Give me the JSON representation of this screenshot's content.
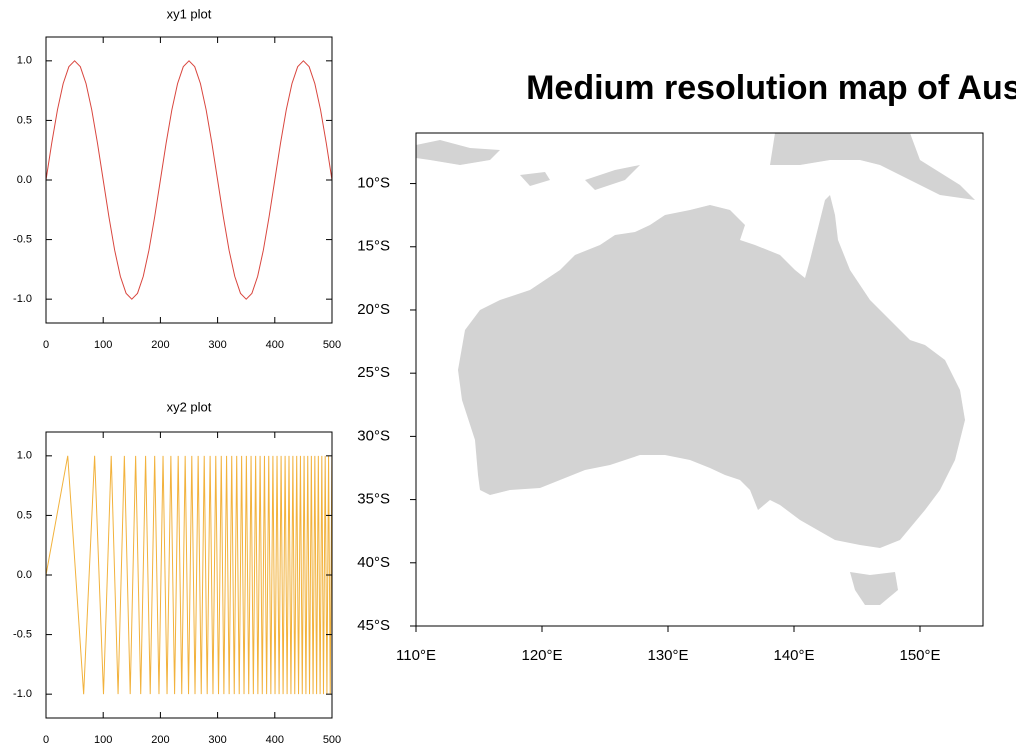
{
  "chart_data": [
    {
      "type": "line",
      "title": "xy1 plot",
      "color": "#d9463e",
      "x": [
        0,
        10,
        20,
        30,
        40,
        50,
        60,
        70,
        80,
        90,
        100,
        110,
        120,
        130,
        140,
        150,
        160,
        170,
        180,
        190,
        200,
        210,
        220,
        230,
        240,
        250,
        260,
        270,
        280,
        290,
        300,
        310,
        320,
        330,
        340,
        350,
        360,
        370,
        380,
        390,
        400,
        410,
        420,
        430,
        440,
        450,
        460,
        470,
        480,
        490,
        500
      ],
      "values": [
        0,
        0.309,
        0.588,
        0.809,
        0.951,
        1,
        0.951,
        0.809,
        0.588,
        0.309,
        0,
        -0.309,
        -0.588,
        -0.809,
        -0.951,
        -1,
        -0.951,
        -0.809,
        -0.588,
        -0.309,
        0,
        0.309,
        0.588,
        0.809,
        0.951,
        1,
        0.951,
        0.809,
        0.588,
        0.309,
        0,
        -0.309,
        -0.588,
        -0.809,
        -0.951,
        -1,
        -0.951,
        -0.809,
        -0.588,
        -0.309,
        0,
        0.309,
        0.588,
        0.809,
        0.951,
        1,
        0.951,
        0.809,
        0.588,
        0.309,
        0
      ],
      "xlim": [
        0,
        500
      ],
      "ylim": [
        -1.2,
        1.2
      ],
      "xticks": [
        0,
        100,
        200,
        300,
        400,
        500
      ],
      "yticks": [
        {
          "value": -1,
          "label": "-1.0"
        },
        {
          "value": -0.5,
          "label": "-0.5"
        },
        {
          "value": 0,
          "label": "0.0"
        },
        {
          "value": 0.5,
          "label": "0.5"
        },
        {
          "value": 1,
          "label": "1.0"
        }
      ]
    },
    {
      "type": "line",
      "title": "xy2 plot",
      "color": "#f2b23c",
      "x": [
        0,
        38,
        65.8,
        85,
        100.5,
        114,
        126,
        137,
        147.2,
        156.7,
        165.6,
        174.1,
        182.2,
        190,
        197.5,
        204.6,
        211.6,
        218.3,
        224.8,
        231.1,
        237.3,
        243.3,
        249.2,
        254.9,
        260.5,
        266,
        271.4,
        276.6,
        281.8,
        286.9,
        291.9,
        296.8,
        301.6,
        306.4,
        311,
        315.7,
        320.2,
        324.7,
        329.1,
        333.4,
        337.8,
        342,
        346.2,
        350.3,
        354.4,
        358.5,
        362.5,
        366.5,
        370.4,
        374.3,
        378.1,
        381.9,
        385.7,
        389.4,
        393.1,
        396.7,
        400.4,
        403.9,
        407.5,
        411,
        414.5,
        418,
        421.5,
        424.8,
        428.2,
        431.6,
        434.9,
        438.3,
        441.5,
        444.8,
        448,
        451.2,
        454.4,
        457.6,
        460.7,
        463.9,
        466.9,
        470,
        473.1,
        476.1,
        479.2,
        482.2,
        485.1,
        488.1,
        491.1,
        494,
        496.9,
        499.8
      ],
      "values": [
        0,
        1,
        -1,
        1,
        -1,
        1,
        -1,
        1,
        -1,
        1,
        -1,
        1,
        -1,
        1,
        -1,
        1,
        -1,
        1,
        -1,
        1,
        -1,
        1,
        -1,
        1,
        -1,
        1,
        -1,
        1,
        -1,
        1,
        -1,
        1,
        -1,
        1,
        -1,
        1,
        -1,
        1,
        -1,
        1,
        -1,
        1,
        -1,
        1,
        -1,
        1,
        -1,
        1,
        -1,
        1,
        -1,
        1,
        -1,
        1,
        -1,
        1,
        -1,
        1,
        -1,
        1,
        -1,
        1,
        -1,
        1,
        -1,
        1,
        -1,
        1,
        -1,
        1,
        -1,
        1,
        -1,
        1,
        -1,
        1,
        -1,
        1,
        -1,
        1,
        -1,
        1,
        -1,
        1,
        -1,
        1,
        -1,
        1
      ],
      "xlim": [
        0,
        500
      ],
      "ylim": [
        -1.2,
        1.2
      ],
      "xticks": [
        0,
        100,
        200,
        300,
        400,
        500
      ],
      "yticks": [
        {
          "value": -1,
          "label": "-1.0"
        },
        {
          "value": -0.5,
          "label": "-0.5"
        },
        {
          "value": 0,
          "label": "0.0"
        },
        {
          "value": 0.5,
          "label": "0.5"
        },
        {
          "value": 1,
          "label": "1.0"
        }
      ]
    },
    {
      "type": "map",
      "title": "Medium resolution map of Australia",
      "land_color": "#d3d3d3",
      "xlim": [
        110,
        155
      ],
      "ylim": [
        -45,
        -6
      ],
      "xticks": [
        {
          "value": 110,
          "label": "110°E"
        },
        {
          "value": 120,
          "label": "120°E"
        },
        {
          "value": 130,
          "label": "130°E"
        },
        {
          "value": 140,
          "label": "140°E"
        },
        {
          "value": 150,
          "label": "150°E"
        }
      ],
      "yticks": [
        {
          "value": -45,
          "label": "45°S"
        },
        {
          "value": -40,
          "label": "40°S"
        },
        {
          "value": -35,
          "label": "35°S"
        },
        {
          "value": -30,
          "label": "30°S"
        },
        {
          "value": -25,
          "label": "25°S"
        },
        {
          "value": -20,
          "label": "20°S"
        },
        {
          "value": -15,
          "label": "15°S"
        },
        {
          "value": -10,
          "label": "10°S"
        }
      ]
    }
  ]
}
